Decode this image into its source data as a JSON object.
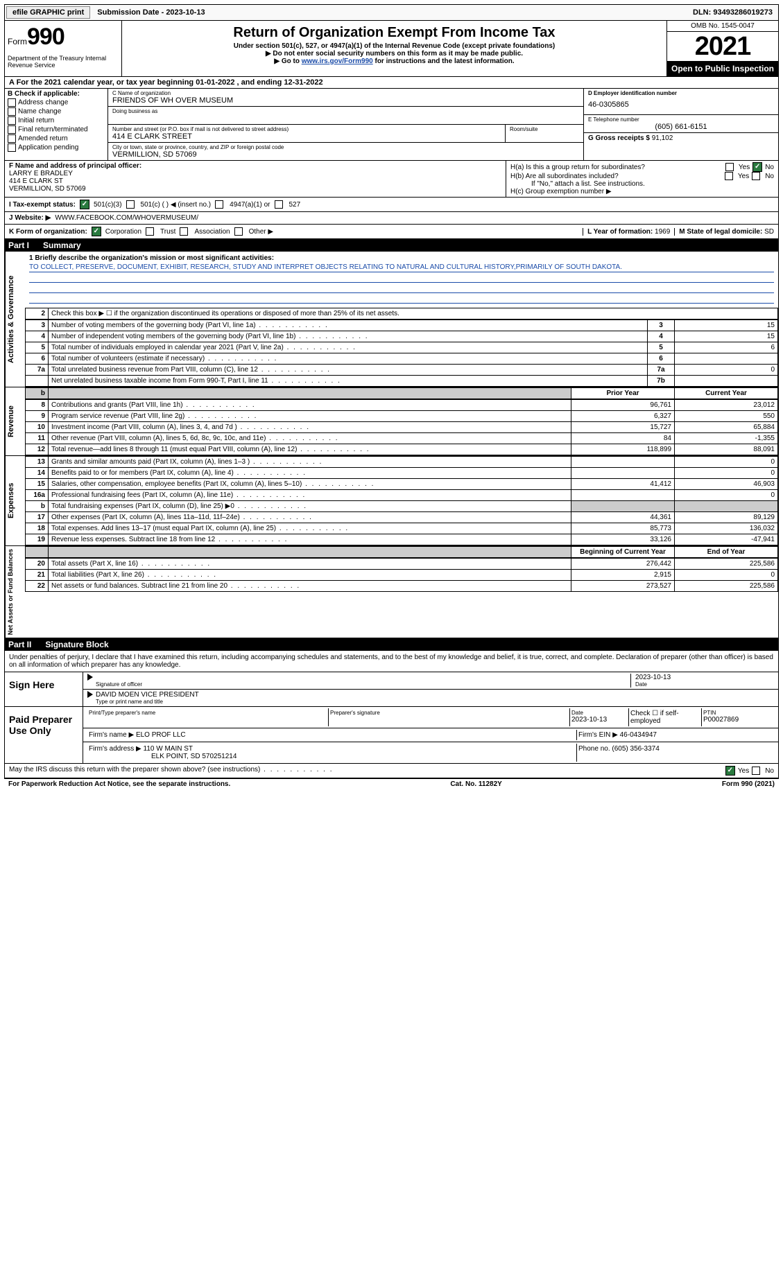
{
  "topbar": {
    "efile": "efile GRAPHIC print",
    "sub_label": "Submission Date - 2023-10-13",
    "dln": "DLN: 93493286019273"
  },
  "header": {
    "form_prefix": "Form",
    "form_no": "990",
    "dept": "Department of the Treasury\nInternal Revenue Service",
    "title": "Return of Organization Exempt From Income Tax",
    "subtitle": "Under section 501(c), 527, or 4947(a)(1) of the Internal Revenue Code (except private foundations)",
    "note1": "▶ Do not enter social security numbers on this form as it may be made public.",
    "note2_a": "▶ Go to ",
    "note2_link": "www.irs.gov/Form990",
    "note2_b": " for instructions and the latest information.",
    "omb": "OMB No. 1545-0047",
    "year": "2021",
    "open": "Open to Public Inspection"
  },
  "row_a": "A For the 2021 calendar year, or tax year beginning 01-01-2022   , and ending 12-31-2022",
  "section_b": {
    "b_label": "B Check if applicable:",
    "checks": [
      "Address change",
      "Name change",
      "Initial return",
      "Final return/terminated",
      "Amended return",
      "Application pending"
    ],
    "c_label": "C Name of organization",
    "c_name": "FRIENDS OF WH OVER MUSEUM",
    "dba_label": "Doing business as",
    "addr_label": "Number and street (or P.O. box if mail is not delivered to street address)",
    "room_label": "Room/suite",
    "addr": "414 E CLARK STREET",
    "city_label": "City or town, state or province, country, and ZIP or foreign postal code",
    "city": "VERMILLION, SD  57069",
    "d_label": "D Employer identification number",
    "d_ein": "46-0305865",
    "e_label": "E Telephone number",
    "e_phone": "(605) 661-6151",
    "g_label": "G Gross receipts $",
    "g_amt": "91,102"
  },
  "section_fh": {
    "f_label": "F Name and address of principal officer:",
    "f_name": "LARRY E BRADLEY",
    "f_addr1": "414 E CLARK ST",
    "f_addr2": "VERMILLION, SD  57069",
    "h_a": "H(a)  Is this a group return for subordinates?",
    "h_b": "H(b)  Are all subordinates included?",
    "h_b_note": "If \"No,\" attach a list. See instructions.",
    "h_c": "H(c)  Group exemption number ▶",
    "yes": "Yes",
    "no": "No"
  },
  "status": {
    "i_label": "I   Tax-exempt status:",
    "s1": "501(c)(3)",
    "s2": "501(c) (  ) ◀ (insert no.)",
    "s3": "4947(a)(1) or",
    "s4": "527"
  },
  "website": {
    "j_label": "J   Website: ▶",
    "url": "WWW.FACEBOOK.COM/WHOVERMUSEUM/"
  },
  "k_row": {
    "k_label": "K Form of organization:",
    "k1": "Corporation",
    "k2": "Trust",
    "k3": "Association",
    "k4": "Other ▶",
    "l_label": "L Year of formation:",
    "l_val": "1969",
    "m_label": "M State of legal domicile:",
    "m_val": "SD"
  },
  "part1": {
    "hdr_part": "Part I",
    "hdr_title": "Summary",
    "line1_label": "1  Briefly describe the organization's mission or most significant activities:",
    "line1_text": "TO COLLECT, PRESERVE, DOCUMENT, EXHIBIT, RESEARCH, STUDY AND INTERPRET OBJECTS RELATING TO NATURAL AND CULTURAL HISTORY,PRIMARILY OF SOUTH DAKOTA.",
    "line2": "Check this box ▶ ☐  if the organization discontinued its operations or disposed of more than 25% of its net assets.",
    "side_ag": "Activities & Governance",
    "side_rev": "Revenue",
    "side_exp": "Expenses",
    "side_net": "Net Assets or Fund Balances",
    "prior_hdr": "Prior Year",
    "curr_hdr": "Current Year",
    "boy_hdr": "Beginning of Current Year",
    "eoy_hdr": "End of Year",
    "rows_ag": [
      {
        "n": "3",
        "d": "Number of voting members of the governing body (Part VI, line 1a)",
        "box": "3",
        "v": "15"
      },
      {
        "n": "4",
        "d": "Number of independent voting members of the governing body (Part VI, line 1b)",
        "box": "4",
        "v": "15"
      },
      {
        "n": "5",
        "d": "Total number of individuals employed in calendar year 2021 (Part V, line 2a)",
        "box": "5",
        "v": "6"
      },
      {
        "n": "6",
        "d": "Total number of volunteers (estimate if necessary)",
        "box": "6",
        "v": ""
      },
      {
        "n": "7a",
        "d": "Total unrelated business revenue from Part VIII, column (C), line 12",
        "box": "7a",
        "v": "0"
      },
      {
        "n": "",
        "d": "Net unrelated business taxable income from Form 990-T, Part I, line 11",
        "box": "7b",
        "v": ""
      }
    ],
    "rows_rev": [
      {
        "n": "8",
        "d": "Contributions and grants (Part VIII, line 1h)",
        "p": "96,761",
        "c": "23,012"
      },
      {
        "n": "9",
        "d": "Program service revenue (Part VIII, line 2g)",
        "p": "6,327",
        "c": "550"
      },
      {
        "n": "10",
        "d": "Investment income (Part VIII, column (A), lines 3, 4, and 7d )",
        "p": "15,727",
        "c": "65,884"
      },
      {
        "n": "11",
        "d": "Other revenue (Part VIII, column (A), lines 5, 6d, 8c, 9c, 10c, and 11e)",
        "p": "84",
        "c": "-1,355"
      },
      {
        "n": "12",
        "d": "Total revenue—add lines 8 through 11 (must equal Part VIII, column (A), line 12)",
        "p": "118,899",
        "c": "88,091"
      }
    ],
    "rows_exp": [
      {
        "n": "13",
        "d": "Grants and similar amounts paid (Part IX, column (A), lines 1–3 )",
        "p": "",
        "c": "0"
      },
      {
        "n": "14",
        "d": "Benefits paid to or for members (Part IX, column (A), line 4)",
        "p": "",
        "c": "0"
      },
      {
        "n": "15",
        "d": "Salaries, other compensation, employee benefits (Part IX, column (A), lines 5–10)",
        "p": "41,412",
        "c": "46,903"
      },
      {
        "n": "16a",
        "d": "Professional fundraising fees (Part IX, column (A), line 11e)",
        "p": "",
        "c": "0"
      },
      {
        "n": "b",
        "d": "Total fundraising expenses (Part IX, column (D), line 25) ▶0",
        "p": "SHADE",
        "c": "SHADE"
      },
      {
        "n": "17",
        "d": "Other expenses (Part IX, column (A), lines 11a–11d, 11f–24e)",
        "p": "44,361",
        "c": "89,129"
      },
      {
        "n": "18",
        "d": "Total expenses. Add lines 13–17 (must equal Part IX, column (A), line 25)",
        "p": "85,773",
        "c": "136,032"
      },
      {
        "n": "19",
        "d": "Revenue less expenses. Subtract line 18 from line 12",
        "p": "33,126",
        "c": "-47,941"
      }
    ],
    "rows_net": [
      {
        "n": "20",
        "d": "Total assets (Part X, line 16)",
        "p": "276,442",
        "c": "225,586"
      },
      {
        "n": "21",
        "d": "Total liabilities (Part X, line 26)",
        "p": "2,915",
        "c": "0"
      },
      {
        "n": "22",
        "d": "Net assets or fund balances. Subtract line 21 from line 20",
        "p": "273,527",
        "c": "225,586"
      }
    ]
  },
  "part2": {
    "hdr_part": "Part II",
    "hdr_title": "Signature Block",
    "decl": "Under penalties of perjury, I declare that I have examined this return, including accompanying schedules and statements, and to the best of my knowledge and belief, it is true, correct, and complete. Declaration of preparer (other than officer) is based on all information of which preparer has any knowledge.",
    "sign_here": "Sign Here",
    "sig_officer": "Signature of officer",
    "sig_date": "2023-10-13",
    "sig_date_lbl": "Date",
    "sig_name": "DAVID MOEN  VICE PRESIDENT",
    "sig_name_lbl": "Type or print name and title",
    "paid_prep": "Paid Preparer Use Only",
    "pp_name_lbl": "Print/Type preparer's name",
    "pp_sig_lbl": "Preparer's signature",
    "pp_date_lbl": "Date",
    "pp_date": "2023-10-13",
    "pp_check_lbl": "Check ☐ if self-employed",
    "pp_ptin_lbl": "PTIN",
    "pp_ptin": "P00027869",
    "firm_name_lbl": "Firm's name    ▶",
    "firm_name": "ELO PROF LLC",
    "firm_ein_lbl": "Firm's EIN ▶",
    "firm_ein": "46-0434947",
    "firm_addr_lbl": "Firm's address ▶",
    "firm_addr1": "110 W MAIN ST",
    "firm_addr2": "ELK POINT, SD  570251214",
    "firm_phone_lbl": "Phone no.",
    "firm_phone": "(605) 356-3374",
    "discuss": "May the IRS discuss this return with the preparer shown above? (see instructions)",
    "yes": "Yes",
    "no": "No"
  },
  "footer": {
    "left": "For Paperwork Reduction Act Notice, see the separate instructions.",
    "mid": "Cat. No. 11282Y",
    "right": "Form 990 (2021)"
  }
}
